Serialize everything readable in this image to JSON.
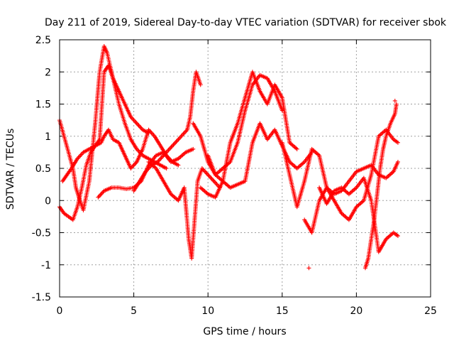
{
  "chart_data": {
    "type": "scatter",
    "title": "Day 211 of 2019, Sidereal Day-to-day VTEC variation (SDTVAR) for receiver sbok",
    "xlabel": "GPS time / hours",
    "ylabel": "SDTVAR / TECUs",
    "xlim": [
      0,
      25
    ],
    "ylim": [
      -1.5,
      2.5
    ],
    "xticks": [
      0,
      5,
      10,
      15,
      20,
      25
    ],
    "xtick_labels": [
      "0",
      "5",
      "10",
      "15",
      "20",
      "25"
    ],
    "yticks": [
      -1.5,
      -1,
      -0.5,
      0,
      0.5,
      1,
      1.5,
      2,
      2.5
    ],
    "ytick_labels": [
      "-1.5",
      "-1",
      "-0.5",
      "0",
      "0.5",
      "1",
      "1.5",
      "2",
      "2.5"
    ],
    "grid": true,
    "marker": "+",
    "color": "#ff0000",
    "series": [
      {
        "name": "s1",
        "x": [
          0.0,
          0.3,
          0.6,
          0.9,
          1.1,
          1.3,
          1.6,
          2.0,
          2.4,
          2.7,
          3.0,
          3.2,
          3.6,
          4.0,
          4.4,
          4.8,
          5.2,
          5.6,
          6.0,
          6.4,
          6.8,
          7.2
        ],
        "y": [
          1.25,
          1.0,
          0.75,
          0.5,
          0.2,
          0.05,
          -0.15,
          0.3,
          1.2,
          2.0,
          2.4,
          2.3,
          1.9,
          1.5,
          1.2,
          0.95,
          0.8,
          0.7,
          0.65,
          0.6,
          0.55,
          0.5
        ]
      },
      {
        "name": "s2",
        "x": [
          0.0,
          0.3,
          0.6,
          0.9,
          1.2,
          1.5,
          1.8,
          2.1,
          2.4,
          2.7,
          3.0,
          3.3,
          3.6,
          4.0,
          4.4,
          4.8,
          5.2,
          5.6,
          6.0
        ],
        "y": [
          -0.1,
          -0.2,
          -0.25,
          -0.3,
          -0.1,
          0.2,
          0.55,
          0.75,
          0.85,
          0.95,
          2.0,
          2.1,
          1.9,
          1.7,
          1.5,
          1.3,
          1.2,
          1.1,
          1.05
        ]
      },
      {
        "name": "s3",
        "x": [
          0.2,
          0.5,
          0.8,
          1.2,
          1.6,
          2.0,
          2.4,
          2.8,
          3.0,
          3.3,
          3.6,
          4.0,
          4.4,
          4.8,
          5.2,
          5.6,
          6.0,
          6.4,
          6.8,
          7.2,
          7.6,
          8.0
        ],
        "y": [
          0.3,
          0.4,
          0.5,
          0.65,
          0.75,
          0.8,
          0.85,
          0.9,
          1.0,
          1.1,
          0.95,
          0.9,
          0.7,
          0.5,
          0.6,
          0.8,
          1.1,
          1.0,
          0.85,
          0.7,
          0.6,
          0.55
        ]
      },
      {
        "name": "s4",
        "x": [
          2.6,
          3.0,
          3.5,
          4.0,
          4.5,
          5.0,
          5.5,
          6.0,
          6.5,
          7.0,
          7.5,
          8.0,
          8.5,
          9.0
        ],
        "y": [
          0.05,
          0.15,
          0.2,
          0.2,
          0.18,
          0.2,
          0.3,
          0.55,
          0.7,
          0.75,
          0.6,
          0.65,
          0.75,
          0.8
        ]
      },
      {
        "name": "s5",
        "x": [
          5.0,
          5.4,
          5.8,
          6.2,
          6.6,
          7.0,
          7.4,
          7.8,
          8.2,
          8.6,
          8.8,
          9.0,
          9.2,
          9.5
        ],
        "y": [
          0.15,
          0.3,
          0.45,
          0.55,
          0.6,
          0.7,
          0.8,
          0.9,
          1.0,
          1.1,
          1.3,
          1.7,
          2.0,
          1.8
        ]
      },
      {
        "name": "s6",
        "x": [
          6.0,
          6.5,
          7.0,
          7.5,
          8.0,
          8.4,
          8.7,
          8.9,
          9.1,
          9.3,
          9.6,
          10.0,
          10.4,
          10.8
        ],
        "y": [
          0.6,
          0.5,
          0.3,
          0.1,
          0.0,
          0.2,
          -0.6,
          -0.9,
          -0.3,
          0.3,
          0.5,
          0.4,
          0.3,
          0.2
        ]
      },
      {
        "name": "s7",
        "x": [
          9.0,
          9.5,
          10.0,
          10.5,
          11.0,
          11.5,
          12.0,
          12.5,
          13.0,
          13.5,
          14.0,
          14.5,
          15.0
        ],
        "y": [
          1.2,
          1.0,
          0.6,
          0.4,
          0.5,
          0.6,
          0.9,
          1.4,
          1.8,
          1.95,
          1.9,
          1.7,
          1.4
        ]
      },
      {
        "name": "s8",
        "x": [
          9.5,
          10.0,
          10.5,
          11.0,
          11.5,
          12.0,
          12.5,
          13.0,
          13.5,
          14.0,
          14.5,
          15.0,
          15.5,
          16.0
        ],
        "y": [
          0.2,
          0.1,
          0.05,
          0.3,
          0.9,
          1.2,
          1.6,
          2.0,
          1.7,
          1.5,
          1.8,
          1.6,
          0.9,
          0.8
        ]
      },
      {
        "name": "s9",
        "x": [
          10.0,
          10.5,
          11.0,
          11.5,
          12.0,
          12.5,
          13.0,
          13.5,
          14.0,
          14.5,
          15.0,
          15.5,
          16.0,
          16.5,
          17.0
        ],
        "y": [
          0.7,
          0.4,
          0.3,
          0.2,
          0.25,
          0.3,
          0.9,
          1.2,
          0.95,
          1.1,
          0.85,
          0.6,
          0.5,
          0.6,
          0.75
        ]
      },
      {
        "name": "s10",
        "x": [
          15.0,
          15.5,
          16.0,
          16.5,
          17.0,
          17.5,
          18.0,
          18.5,
          19.0,
          19.5,
          20.0,
          20.5,
          21.0,
          21.5,
          22.0,
          22.5,
          22.8
        ],
        "y": [
          0.9,
          0.4,
          -0.1,
          0.3,
          0.8,
          0.7,
          0.2,
          0.0,
          -0.2,
          -0.3,
          -0.1,
          0.0,
          0.4,
          1.0,
          1.1,
          0.95,
          0.9
        ]
      },
      {
        "name": "s11",
        "x": [
          16.5,
          17.0,
          17.5,
          18.0,
          18.5,
          19.0,
          19.5,
          20.0,
          20.5,
          21.0,
          21.5,
          22.0,
          22.5,
          22.8
        ],
        "y": [
          -0.3,
          -0.5,
          0.0,
          0.2,
          0.1,
          0.15,
          0.3,
          0.45,
          0.5,
          0.55,
          0.4,
          0.35,
          0.45,
          0.6
        ]
      },
      {
        "name": "s12",
        "x": [
          17.5,
          18.0,
          18.5,
          19.0,
          19.5,
          20.0,
          20.5,
          21.0,
          21.5,
          22.0,
          22.5,
          22.8
        ],
        "y": [
          0.2,
          -0.05,
          0.15,
          0.2,
          0.1,
          0.2,
          0.35,
          0.0,
          -0.8,
          -0.6,
          -0.5,
          -0.55
        ]
      },
      {
        "name": "s13",
        "x": [
          20.6,
          20.8,
          21.0,
          21.2,
          21.4,
          21.6,
          21.8,
          22.0,
          22.3,
          22.6,
          22.7
        ],
        "y": [
          -1.05,
          -0.9,
          -0.6,
          -0.3,
          0.1,
          0.5,
          0.8,
          1.0,
          1.2,
          1.35,
          1.5
        ]
      }
    ],
    "isolated_points": {
      "x": [
        16.8,
        22.6
      ],
      "y": [
        -1.05,
        1.55
      ]
    }
  }
}
